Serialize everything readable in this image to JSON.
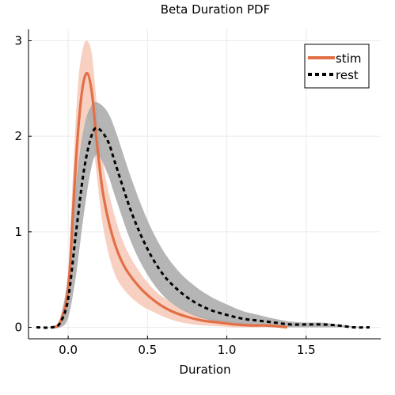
{
  "chart_data": {
    "type": "line",
    "title": "Beta Duration PDF",
    "xlabel": "Duration",
    "ylabel": "",
    "xlim": [
      -0.25,
      1.97
    ],
    "ylim": [
      -0.12,
      3.12
    ],
    "xticks": [
      0.0,
      0.5,
      1.0,
      1.5
    ],
    "xtick_labels": [
      "0.0",
      "0.5",
      "1.0",
      "1.5"
    ],
    "yticks": [
      0,
      1,
      2,
      3
    ],
    "ytick_labels": [
      "0",
      "1",
      "2",
      "3"
    ],
    "grid": true,
    "legend_position": "top-right",
    "colors": {
      "stim": "#e26f46",
      "stim_band": "#f6c0ad",
      "rest": "#000000",
      "rest_band": "#a8a8a8"
    },
    "series": [
      {
        "name": "stim",
        "style": "solid",
        "x": [
          -0.1,
          -0.05,
          0.0,
          0.03,
          0.06,
          0.09,
          0.12,
          0.15,
          0.18,
          0.22,
          0.28,
          0.35,
          0.45,
          0.55,
          0.65,
          0.75,
          0.85,
          0.95,
          1.05,
          1.15,
          1.25,
          1.32,
          1.38
        ],
        "y": [
          0.0,
          0.05,
          0.4,
          1.2,
          2.0,
          2.5,
          2.66,
          2.45,
          1.95,
          1.4,
          0.95,
          0.65,
          0.42,
          0.27,
          0.17,
          0.11,
          0.07,
          0.05,
          0.03,
          0.02,
          0.02,
          0.01,
          0.0
        ],
        "band_upper": [
          0.01,
          0.1,
          0.6,
          1.6,
          2.5,
          2.9,
          3.0,
          2.85,
          2.35,
          1.72,
          1.25,
          0.88,
          0.58,
          0.38,
          0.26,
          0.17,
          0.11,
          0.08,
          0.06,
          0.04,
          0.03,
          0.02,
          0.01
        ],
        "band_lower": [
          0.0,
          0.01,
          0.2,
          0.8,
          1.5,
          2.0,
          2.2,
          2.05,
          1.6,
          1.05,
          0.62,
          0.4,
          0.24,
          0.15,
          0.08,
          0.04,
          0.02,
          0.01,
          0.0,
          0.0,
          0.0,
          0.0,
          0.0
        ]
      },
      {
        "name": "rest",
        "style": "dashed",
        "x": [
          -0.2,
          -0.1,
          -0.05,
          0.0,
          0.05,
          0.1,
          0.15,
          0.19,
          0.25,
          0.3,
          0.4,
          0.5,
          0.6,
          0.7,
          0.8,
          0.9,
          1.0,
          1.1,
          1.2,
          1.3,
          1.4,
          1.5,
          1.6,
          1.7,
          1.8,
          1.9
        ],
        "y": [
          0.0,
          0.0,
          0.05,
          0.3,
          1.0,
          1.65,
          2.02,
          2.08,
          1.95,
          1.7,
          1.2,
          0.82,
          0.55,
          0.38,
          0.26,
          0.18,
          0.13,
          0.09,
          0.07,
          0.05,
          0.03,
          0.03,
          0.03,
          0.02,
          0.0,
          0.0
        ],
        "band_upper": [
          0.0,
          0.01,
          0.1,
          0.55,
          1.5,
          2.1,
          2.33,
          2.35,
          2.25,
          2.05,
          1.55,
          1.12,
          0.8,
          0.58,
          0.43,
          0.32,
          0.24,
          0.17,
          0.13,
          0.09,
          0.06,
          0.05,
          0.05,
          0.03,
          0.01,
          0.0
        ],
        "band_lower": [
          0.0,
          0.0,
          0.0,
          0.1,
          0.55,
          1.2,
          1.7,
          1.8,
          1.6,
          1.35,
          0.88,
          0.55,
          0.33,
          0.2,
          0.12,
          0.07,
          0.04,
          0.02,
          0.01,
          0.0,
          0.0,
          0.0,
          0.0,
          0.0,
          0.0,
          0.0
        ]
      }
    ]
  }
}
